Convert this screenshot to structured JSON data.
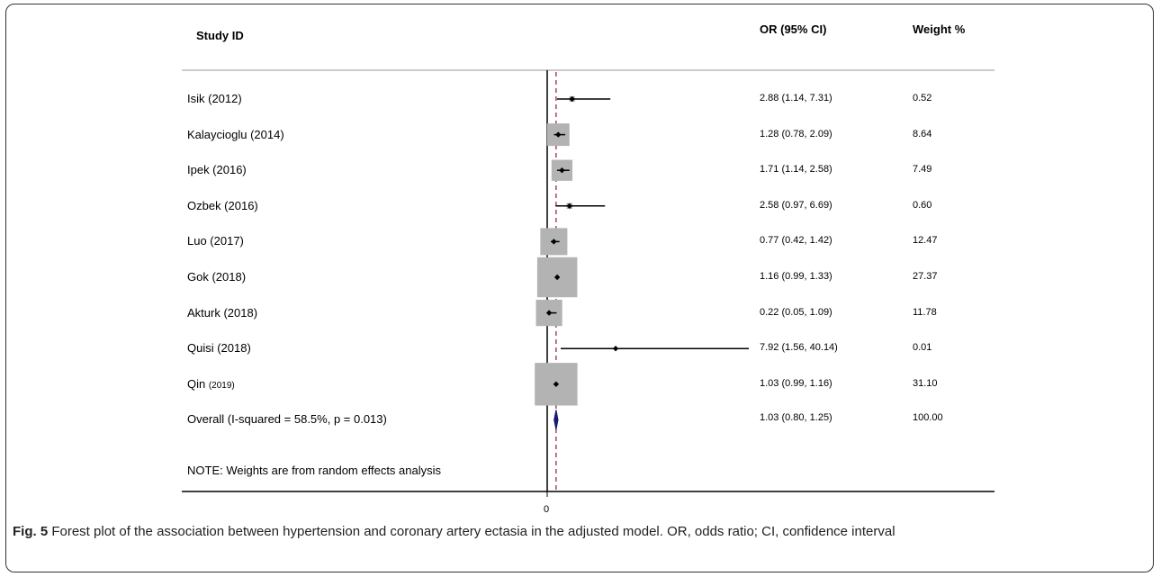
{
  "headers": {
    "study": "Study ID",
    "orci": "OR (95% CI)",
    "weight": "Weight %"
  },
  "rows": [
    {
      "study": "Isik (2012)",
      "or_ci": "2.88 (1.14, 7.31)",
      "weight": "0.52"
    },
    {
      "study": "Kalaycioglu (2014)",
      "or_ci": "1.28 (0.78, 2.09)",
      "weight": "8.64"
    },
    {
      "study": "Ipek (2016)",
      "or_ci": "1.71 (1.14, 2.58)",
      "weight": "7.49"
    },
    {
      "study": "Ozbek (2016)",
      "or_ci": "2.58 (0.97, 6.69)",
      "weight": "0.60"
    },
    {
      "study": "Luo (2017)",
      "or_ci": "0.77 (0.42, 1.42)",
      "weight": "12.47"
    },
    {
      "study": "Gok (2018)",
      "or_ci": "1.16 (0.99, 1.33)",
      "weight": "27.37"
    },
    {
      "study": "Akturk (2018)",
      "or_ci": "0.22 (0.05, 1.09)",
      "weight": "11.78"
    },
    {
      "study": "Quisi (2018)",
      "or_ci": "7.92 (1.56, 40.14)",
      "weight": "0.01"
    },
    {
      "study": "Qin (2019)",
      "or_ci": "1.03 (0.99, 1.16)",
      "weight": "31.10"
    }
  ],
  "overall": {
    "label": "Overall (I-squared = 58.5%, p = 0.013)",
    "or_ci": "1.03 (0.80, 1.25)",
    "weight": "100.00"
  },
  "note": "NOTE: Weights are from random effects analysis",
  "axis_tick": "0",
  "caption": {
    "label": "Fig. 5",
    "text": "Forest plot of the association between hypertension and coronary artery ectasia in the adjusted model. OR, odds ratio; CI, confidence interval"
  },
  "colors": {
    "box": "#b3b3b3",
    "diamond": "#1a1a6e",
    "ref_line": "#8b1a2b",
    "line": "#000000"
  },
  "chart_data": {
    "type": "forest",
    "studies": [
      "Isik (2012)",
      "Kalaycioglu (2014)",
      "Ipek (2016)",
      "Ozbek (2016)",
      "Luo (2017)",
      "Gok (2018)",
      "Akturk (2018)",
      "Quisi (2018)",
      "Qin (2019)"
    ],
    "or": [
      2.88,
      1.28,
      1.71,
      2.58,
      0.77,
      1.16,
      0.22,
      7.92,
      1.03
    ],
    "ci_low": [
      1.14,
      0.78,
      1.14,
      0.97,
      0.42,
      0.99,
      0.05,
      1.56,
      0.99
    ],
    "ci_high": [
      7.31,
      2.09,
      2.58,
      6.69,
      1.42,
      1.33,
      1.09,
      40.14,
      1.16
    ],
    "weights": [
      0.52,
      8.64,
      7.49,
      0.6,
      12.47,
      27.37,
      11.78,
      0.01,
      31.1
    ],
    "overall": {
      "or": 1.03,
      "ci_low": 0.8,
      "ci_high": 1.25
    },
    "x_ticks": [
      "0"
    ]
  }
}
